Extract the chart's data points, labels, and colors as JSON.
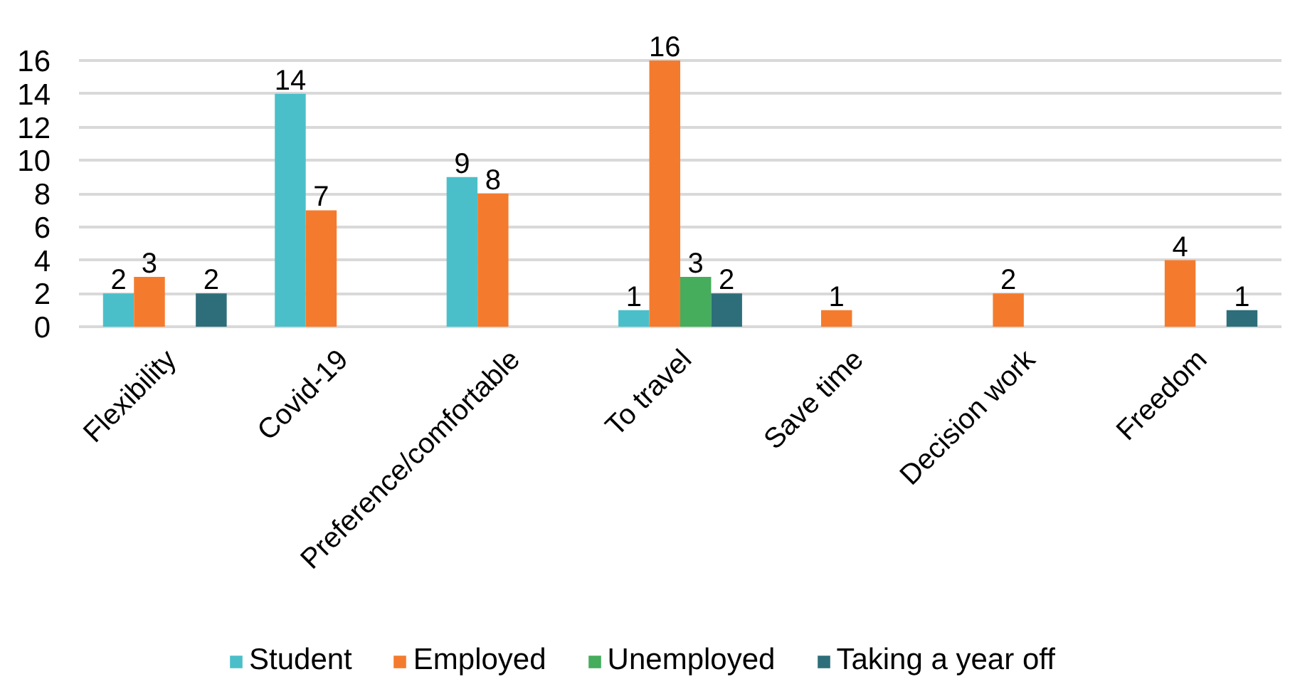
{
  "chart_data": {
    "type": "bar",
    "categories": [
      "Flexibility",
      "Covid-19",
      "Preference/comfortable",
      "To travel",
      "Save time",
      "Decision work",
      "Freedom"
    ],
    "series": [
      {
        "name": "Student",
        "color": "#4bbfc9",
        "values": [
          2,
          14,
          9,
          1,
          null,
          null,
          null
        ]
      },
      {
        "name": "Employed",
        "color": "#f47b2d",
        "values": [
          3,
          7,
          8,
          16,
          1,
          2,
          4
        ]
      },
      {
        "name": "Unemployed",
        "color": "#45ad5c",
        "values": [
          null,
          null,
          null,
          3,
          null,
          null,
          null
        ]
      },
      {
        "name": "Taking a year off",
        "color": "#2d6e7a",
        "values": [
          2,
          null,
          null,
          2,
          null,
          null,
          1
        ]
      }
    ],
    "ylim": [
      0,
      16
    ],
    "yticks": [
      0,
      2,
      4,
      6,
      8,
      10,
      12,
      14,
      16
    ],
    "grid": "y",
    "legend": "bottom",
    "data_labels": true
  }
}
